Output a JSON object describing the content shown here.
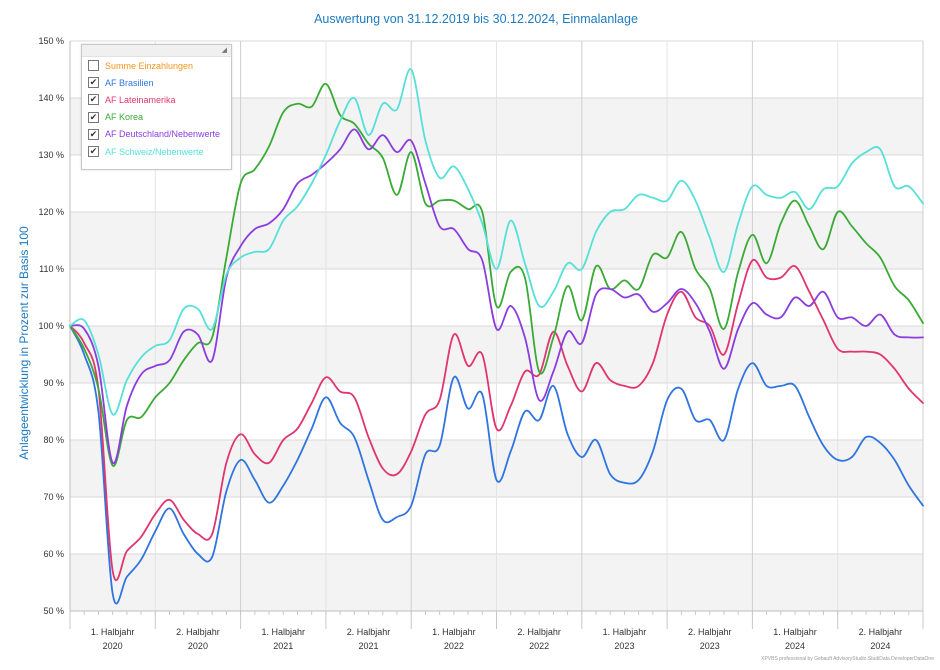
{
  "chart_data": {
    "type": "line",
    "title": "Auswertung von 31.12.2019 bis 30.12.2024, Einmalanlage",
    "ylabel": "Anlageentwicklung  in Prozent zur Basis 100",
    "xlabel": "",
    "ylim": [
      50,
      150
    ],
    "yticks": [
      50,
      60,
      70,
      80,
      90,
      100,
      110,
      120,
      130,
      140,
      150
    ],
    "ytick_labels": [
      "50 %",
      "60 %",
      "70 %",
      "80 %",
      "90 %",
      "100 %",
      "110 %",
      "120 %",
      "130 %",
      "140 %",
      "150 %"
    ],
    "xlim": [
      0,
      60
    ],
    "x_tick_labels": [
      {
        "half": "1. Halbjahr",
        "year": "2020"
      },
      {
        "half": "2. Halbjahr",
        "year": "2020"
      },
      {
        "half": "1. Halbjahr",
        "year": "2021"
      },
      {
        "half": "2. Halbjahr",
        "year": "2021"
      },
      {
        "half": "1. Halbjahr",
        "year": "2022"
      },
      {
        "half": "2. Halbjahr",
        "year": "2022"
      },
      {
        "half": "1. Halbjahr",
        "year": "2023"
      },
      {
        "half": "2. Halbjahr",
        "year": "2023"
      },
      {
        "half": "1. Halbjahr",
        "year": "2024"
      },
      {
        "half": "2. Halbjahr",
        "year": "2024"
      }
    ],
    "grid": true,
    "legend_position": "top-left",
    "series": [
      {
        "name": "Summe Einzahlungen",
        "color": "#f7941d",
        "checked": false,
        "points": []
      },
      {
        "name": "AF Brasilien",
        "color": "#2f74e0",
        "checked": true,
        "points": [
          [
            0,
            100
          ],
          [
            1,
            95
          ],
          [
            2,
            85
          ],
          [
            3,
            53
          ],
          [
            4,
            56
          ],
          [
            5,
            59
          ],
          [
            6,
            64
          ],
          [
            7,
            68
          ],
          [
            8,
            63.5
          ],
          [
            9,
            60
          ],
          [
            10,
            59.5
          ],
          [
            11,
            71
          ],
          [
            12,
            76.5
          ],
          [
            13,
            73
          ],
          [
            14,
            69
          ],
          [
            15,
            72
          ],
          [
            16,
            76.5
          ],
          [
            17,
            82
          ],
          [
            18,
            87.5
          ],
          [
            19,
            83
          ],
          [
            20,
            80.5
          ],
          [
            21,
            73
          ],
          [
            22,
            66
          ],
          [
            23,
            66.5
          ],
          [
            24,
            68.5
          ],
          [
            25,
            77.5
          ],
          [
            26,
            79
          ],
          [
            27,
            91
          ],
          [
            28,
            85.5
          ],
          [
            29,
            88
          ],
          [
            30,
            73
          ],
          [
            31,
            78
          ],
          [
            32,
            85
          ],
          [
            33,
            83.5
          ],
          [
            34,
            89.5
          ],
          [
            35,
            81
          ],
          [
            36,
            77
          ],
          [
            37,
            80
          ],
          [
            38,
            74
          ],
          [
            39,
            72.5
          ],
          [
            40,
            73
          ],
          [
            41,
            78
          ],
          [
            42,
            87
          ],
          [
            43,
            89
          ],
          [
            44,
            83.5
          ],
          [
            45,
            83.5
          ],
          [
            46,
            80
          ],
          [
            47,
            89
          ],
          [
            48,
            93.5
          ],
          [
            49,
            89.5
          ],
          [
            50,
            89.5
          ],
          [
            51,
            89.5
          ],
          [
            52,
            84
          ],
          [
            53,
            79
          ],
          [
            54,
            76.5
          ],
          [
            55,
            77
          ],
          [
            56,
            80.5
          ],
          [
            57,
            79.5
          ],
          [
            58,
            76.5
          ],
          [
            59,
            72
          ],
          [
            60,
            68.5
          ]
        ]
      },
      {
        "name": "AF Lateinamerika",
        "color": "#e0356d",
        "checked": true,
        "points": [
          [
            0,
            100
          ],
          [
            1,
            97
          ],
          [
            2,
            89
          ],
          [
            3,
            57
          ],
          [
            4,
            60.5
          ],
          [
            5,
            63
          ],
          [
            6,
            67
          ],
          [
            7,
            69.5
          ],
          [
            8,
            66
          ],
          [
            9,
            63.5
          ],
          [
            10,
            63.5
          ],
          [
            11,
            76
          ],
          [
            12,
            81
          ],
          [
            13,
            77.5
          ],
          [
            14,
            76
          ],
          [
            15,
            80
          ],
          [
            16,
            82
          ],
          [
            17,
            86.5
          ],
          [
            18,
            91
          ],
          [
            19,
            88.5
          ],
          [
            20,
            87.5
          ],
          [
            21,
            80.5
          ],
          [
            22,
            75
          ],
          [
            23,
            74
          ],
          [
            24,
            78
          ],
          [
            25,
            84.5
          ],
          [
            26,
            87
          ],
          [
            27,
            98.5
          ],
          [
            28,
            93
          ],
          [
            29,
            95
          ],
          [
            30,
            82
          ],
          [
            31,
            86
          ],
          [
            32,
            92
          ],
          [
            33,
            91.5
          ],
          [
            34,
            99
          ],
          [
            35,
            93
          ],
          [
            36,
            88.5
          ],
          [
            37,
            93.5
          ],
          [
            38,
            90.5
          ],
          [
            39,
            89.5
          ],
          [
            40,
            89.5
          ],
          [
            41,
            93.5
          ],
          [
            42,
            102
          ],
          [
            43,
            106
          ],
          [
            44,
            101.5
          ],
          [
            45,
            100
          ],
          [
            46,
            95
          ],
          [
            47,
            104
          ],
          [
            48,
            111.5
          ],
          [
            49,
            108.5
          ],
          [
            50,
            108.5
          ],
          [
            51,
            110.5
          ],
          [
            52,
            106
          ],
          [
            53,
            101
          ],
          [
            54,
            96
          ],
          [
            55,
            95.5
          ],
          [
            56,
            95.5
          ],
          [
            57,
            95
          ],
          [
            58,
            92.5
          ],
          [
            59,
            89
          ],
          [
            60,
            86.5
          ]
        ]
      },
      {
        "name": "AF Korea",
        "color": "#3aaa35",
        "checked": true,
        "points": [
          [
            0,
            100
          ],
          [
            1,
            96
          ],
          [
            2,
            89
          ],
          [
            3,
            75.5
          ],
          [
            4,
            83.5
          ],
          [
            5,
            84
          ],
          [
            6,
            87.5
          ],
          [
            7,
            90
          ],
          [
            8,
            94
          ],
          [
            9,
            97
          ],
          [
            10,
            98
          ],
          [
            11,
            112
          ],
          [
            12,
            125
          ],
          [
            13,
            127.5
          ],
          [
            14,
            131.5
          ],
          [
            15,
            137.5
          ],
          [
            16,
            139
          ],
          [
            17,
            138.5
          ],
          [
            18,
            142.5
          ],
          [
            19,
            137
          ],
          [
            20,
            135.5
          ],
          [
            21,
            132
          ],
          [
            22,
            129.5
          ],
          [
            23,
            123
          ],
          [
            24,
            130.5
          ],
          [
            25,
            121.5
          ],
          [
            26,
            122
          ],
          [
            27,
            122
          ],
          [
            28,
            120.5
          ],
          [
            29,
            120
          ],
          [
            30,
            103.5
          ],
          [
            31,
            109.5
          ],
          [
            32,
            108.5
          ],
          [
            33,
            92
          ],
          [
            34,
            98
          ],
          [
            35,
            107
          ],
          [
            36,
            101
          ],
          [
            37,
            110.5
          ],
          [
            38,
            106.5
          ],
          [
            39,
            108
          ],
          [
            40,
            106.5
          ],
          [
            41,
            112.5
          ],
          [
            42,
            112
          ],
          [
            43,
            116.5
          ],
          [
            44,
            110
          ],
          [
            45,
            106.5
          ],
          [
            46,
            99.5
          ],
          [
            47,
            109.5
          ],
          [
            48,
            116
          ],
          [
            49,
            111
          ],
          [
            50,
            118
          ],
          [
            51,
            122
          ],
          [
            52,
            117.5
          ],
          [
            53,
            113.5
          ],
          [
            54,
            120
          ],
          [
            55,
            117.5
          ],
          [
            56,
            114.5
          ],
          [
            57,
            112
          ],
          [
            58,
            107
          ],
          [
            59,
            104.5
          ],
          [
            60,
            100.5
          ]
        ]
      },
      {
        "name": "AF Deutschland/Nebenwerte",
        "color": "#8b3de0",
        "checked": true,
        "points": [
          [
            0,
            100
          ],
          [
            1,
            99.5
          ],
          [
            2,
            93
          ],
          [
            3,
            76
          ],
          [
            4,
            86
          ],
          [
            5,
            91.5
          ],
          [
            6,
            93
          ],
          [
            7,
            94
          ],
          [
            8,
            99
          ],
          [
            9,
            98.5
          ],
          [
            10,
            94
          ],
          [
            11,
            108.5
          ],
          [
            12,
            114
          ],
          [
            13,
            117
          ],
          [
            14,
            118
          ],
          [
            15,
            120.5
          ],
          [
            16,
            125
          ],
          [
            17,
            126.5
          ],
          [
            18,
            128.5
          ],
          [
            19,
            131
          ],
          [
            20,
            134.5
          ],
          [
            21,
            131
          ],
          [
            22,
            133.5
          ],
          [
            23,
            130.5
          ],
          [
            24,
            132.5
          ],
          [
            25,
            125
          ],
          [
            26,
            117.5
          ],
          [
            27,
            117
          ],
          [
            28,
            113.5
          ],
          [
            29,
            111.5
          ],
          [
            30,
            99.5
          ],
          [
            31,
            103.5
          ],
          [
            32,
            98
          ],
          [
            33,
            87
          ],
          [
            34,
            92
          ],
          [
            35,
            99
          ],
          [
            36,
            97
          ],
          [
            37,
            105.5
          ],
          [
            38,
            106.5
          ],
          [
            39,
            105
          ],
          [
            40,
            105.5
          ],
          [
            41,
            102.5
          ],
          [
            42,
            104
          ],
          [
            43,
            106.5
          ],
          [
            44,
            104
          ],
          [
            45,
            99
          ],
          [
            46,
            92.5
          ],
          [
            47,
            99.5
          ],
          [
            48,
            104
          ],
          [
            49,
            102
          ],
          [
            50,
            101.5
          ],
          [
            51,
            105
          ],
          [
            52,
            103.5
          ],
          [
            53,
            106
          ],
          [
            54,
            101.5
          ],
          [
            55,
            101.5
          ],
          [
            56,
            100
          ],
          [
            57,
            102
          ],
          [
            58,
            98.5
          ],
          [
            59,
            98
          ],
          [
            60,
            98
          ]
        ]
      },
      {
        "name": "AF Schweiz/Nebenwerte",
        "color": "#55e0d8",
        "checked": true,
        "points": [
          [
            0,
            100
          ],
          [
            1,
            101
          ],
          [
            2,
            95
          ],
          [
            3,
            84.5
          ],
          [
            4,
            90.5
          ],
          [
            5,
            94.5
          ],
          [
            6,
            96.5
          ],
          [
            7,
            97.5
          ],
          [
            8,
            103
          ],
          [
            9,
            103
          ],
          [
            10,
            99.5
          ],
          [
            11,
            109
          ],
          [
            12,
            112
          ],
          [
            13,
            113
          ],
          [
            14,
            113.5
          ],
          [
            15,
            118.5
          ],
          [
            16,
            121
          ],
          [
            17,
            125
          ],
          [
            18,
            130
          ],
          [
            19,
            136
          ],
          [
            20,
            140
          ],
          [
            21,
            133.5
          ],
          [
            22,
            139
          ],
          [
            23,
            138
          ],
          [
            24,
            145
          ],
          [
            25,
            132.5
          ],
          [
            26,
            126
          ],
          [
            27,
            128
          ],
          [
            28,
            124
          ],
          [
            29,
            118
          ],
          [
            30,
            110
          ],
          [
            31,
            118.5
          ],
          [
            32,
            111
          ],
          [
            33,
            103.5
          ],
          [
            34,
            106
          ],
          [
            35,
            111
          ],
          [
            36,
            110
          ],
          [
            37,
            116.5
          ],
          [
            38,
            120
          ],
          [
            39,
            120.5
          ],
          [
            40,
            123
          ],
          [
            41,
            122.5
          ],
          [
            42,
            122
          ],
          [
            43,
            125.5
          ],
          [
            44,
            122
          ],
          [
            45,
            115.5
          ],
          [
            46,
            109.5
          ],
          [
            47,
            118
          ],
          [
            48,
            124.5
          ],
          [
            49,
            123
          ],
          [
            50,
            122.5
          ],
          [
            51,
            123.5
          ],
          [
            52,
            120.5
          ],
          [
            53,
            124
          ],
          [
            54,
            124.5
          ],
          [
            55,
            128.5
          ],
          [
            56,
            130.5
          ],
          [
            57,
            131
          ],
          [
            58,
            124.5
          ],
          [
            59,
            124.5
          ],
          [
            60,
            121.5
          ]
        ]
      }
    ]
  },
  "watermark": "XPVBS professional by Gebauft AdvisoryStudio.StudiData.DeveloperDataOne"
}
